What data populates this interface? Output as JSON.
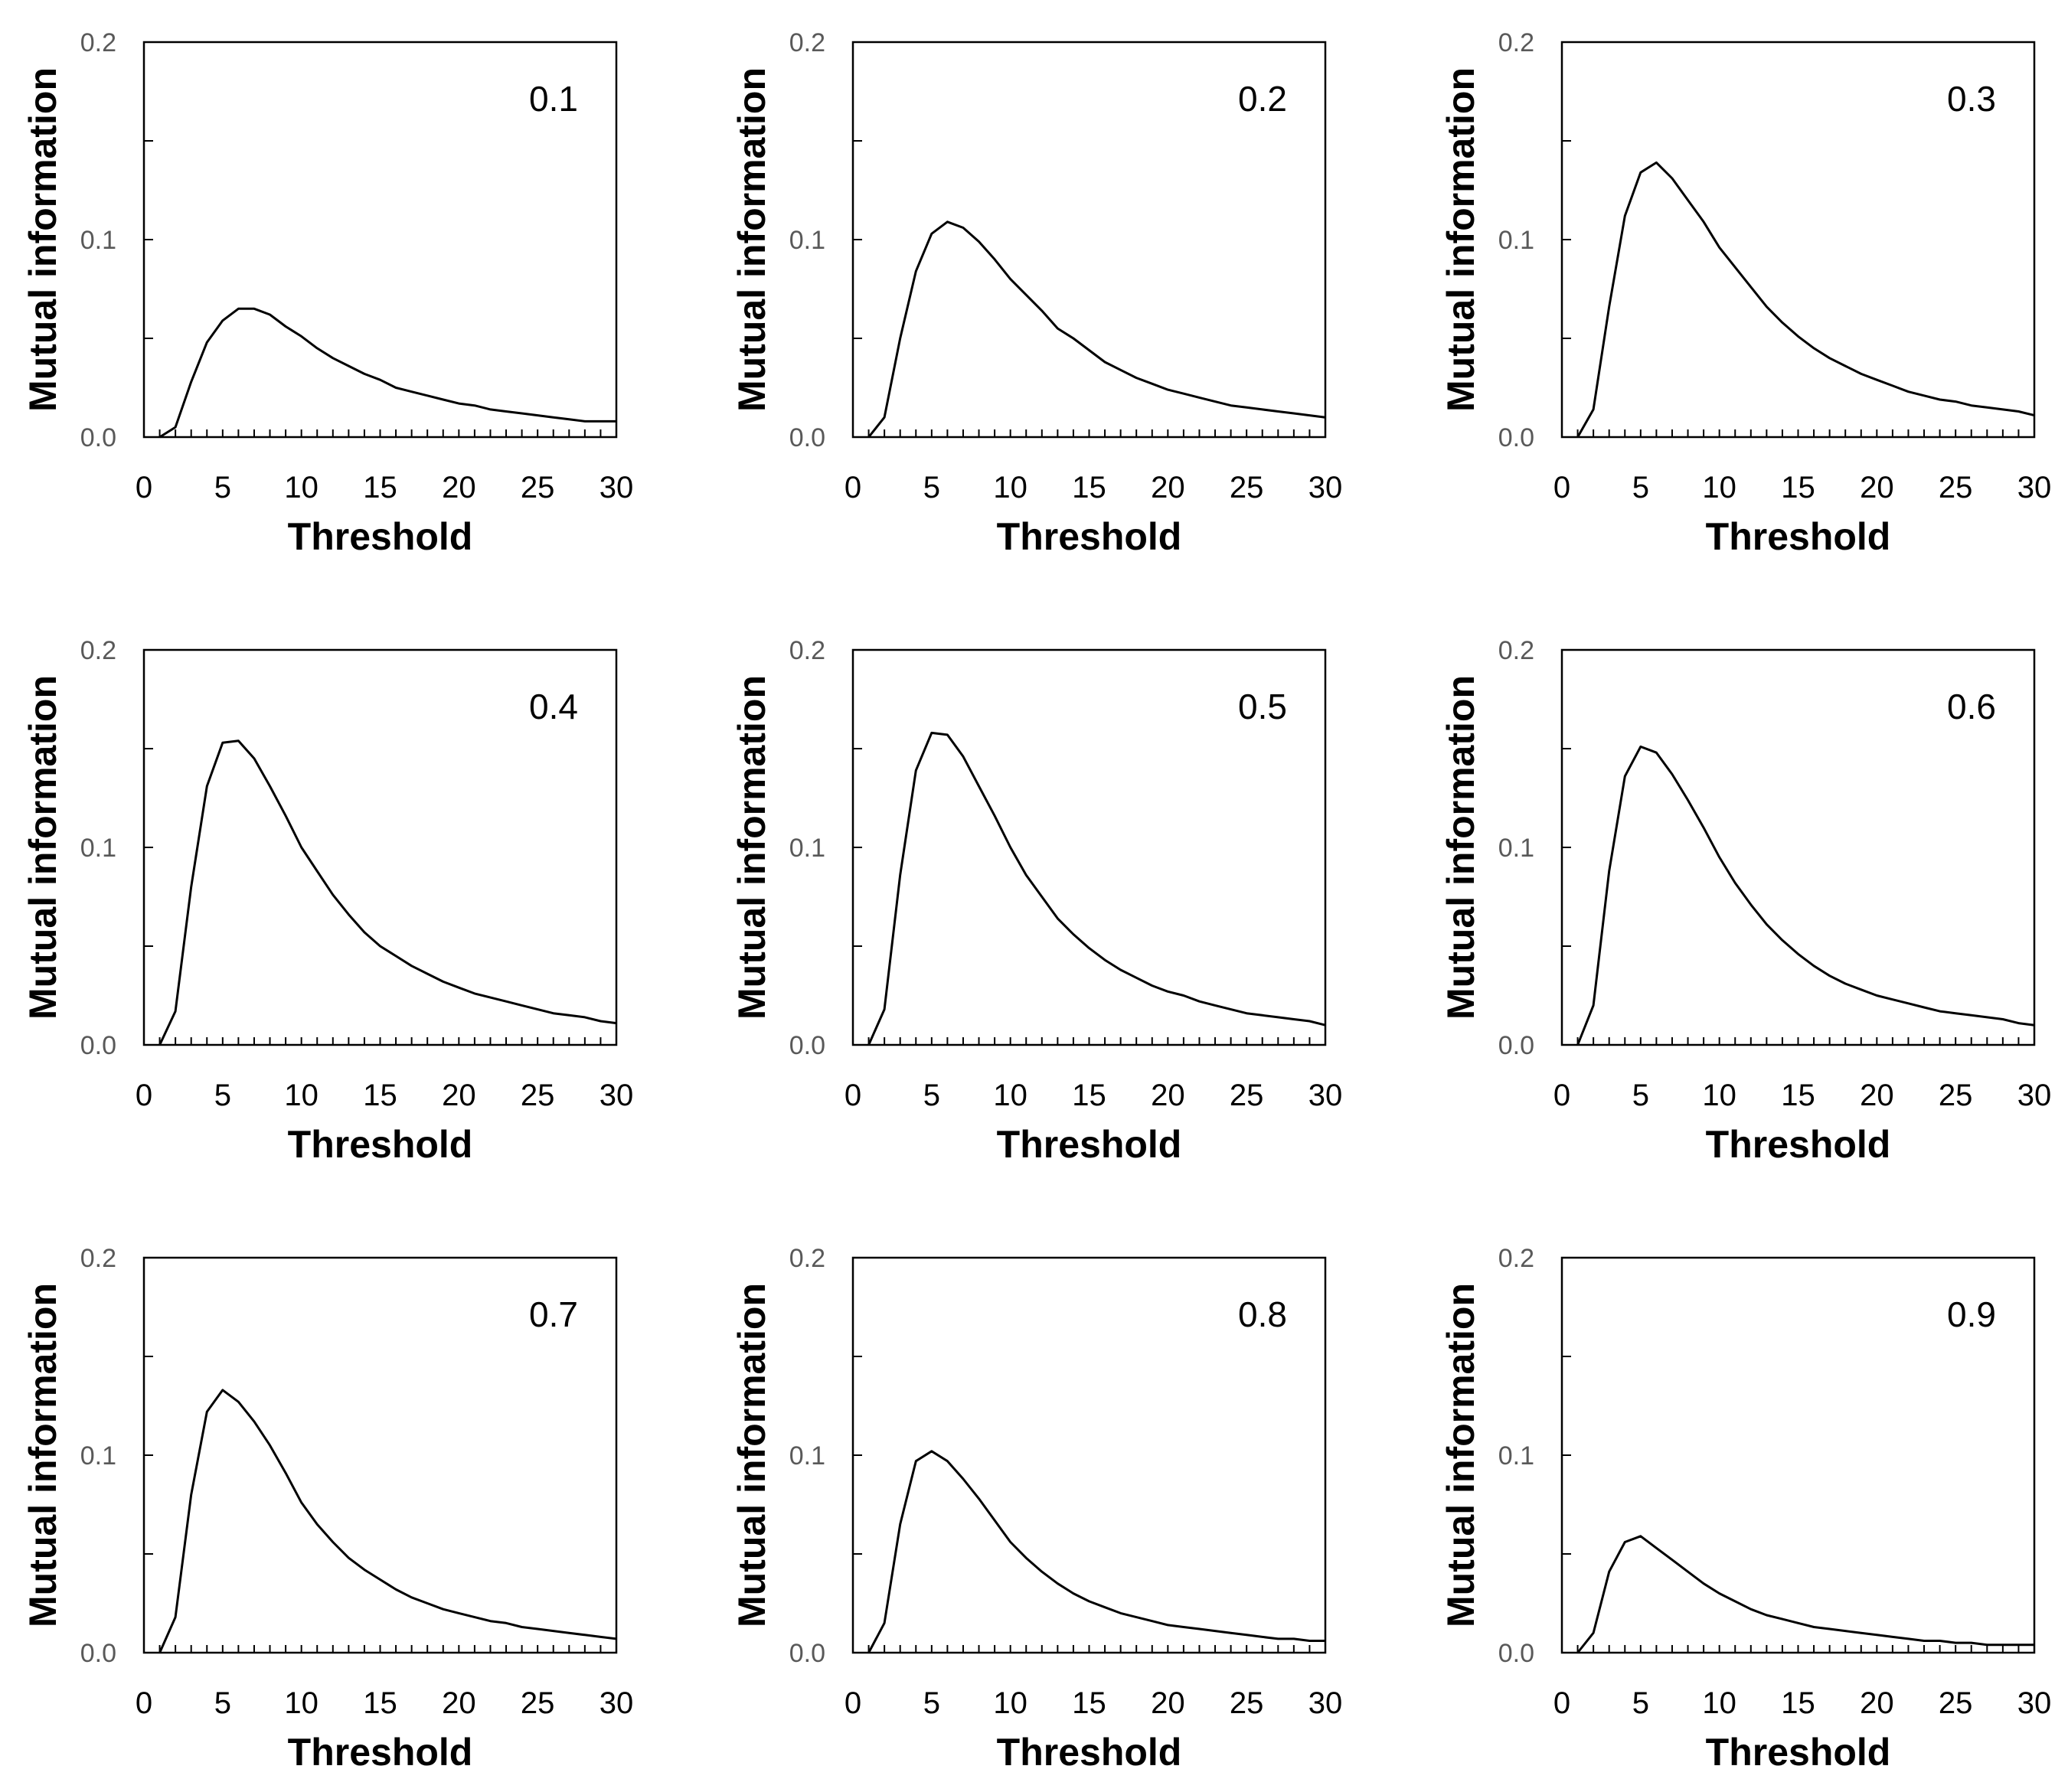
{
  "chart_data": [
    {
      "type": "line",
      "title": "0.1",
      "xlabel": "Threshold",
      "ylabel": "Mutual information",
      "xlim": [
        0,
        30
      ],
      "ylim": [
        0,
        0.2
      ],
      "grid": false,
      "x": [
        1,
        2,
        3,
        4,
        5,
        6,
        7,
        8,
        9,
        10,
        11,
        12,
        13,
        14,
        15,
        16,
        17,
        18,
        19,
        20,
        21,
        22,
        23,
        24,
        25,
        26,
        27,
        28,
        29,
        30
      ],
      "series": [
        {
          "name": "0.1",
          "values": [
            0.0,
            0.005,
            0.028,
            0.048,
            0.059,
            0.065,
            0.065,
            0.062,
            0.056,
            0.051,
            0.045,
            0.04,
            0.036,
            0.032,
            0.029,
            0.025,
            0.023,
            0.021,
            0.019,
            0.017,
            0.016,
            0.014,
            0.013,
            0.012,
            0.011,
            0.01,
            0.009,
            0.008,
            0.008,
            0.008
          ]
        }
      ]
    },
    {
      "type": "line",
      "title": "0.2",
      "xlabel": "Threshold",
      "ylabel": "Mutual information",
      "xlim": [
        0,
        30
      ],
      "ylim": [
        0,
        0.2
      ],
      "grid": false,
      "x": [
        1,
        2,
        3,
        4,
        5,
        6,
        7,
        8,
        9,
        10,
        11,
        12,
        13,
        14,
        15,
        16,
        17,
        18,
        19,
        20,
        21,
        22,
        23,
        24,
        25,
        26,
        27,
        28,
        29,
        30
      ],
      "series": [
        {
          "name": "0.2",
          "values": [
            0.0,
            0.01,
            0.05,
            0.084,
            0.103,
            0.109,
            0.106,
            0.099,
            0.09,
            0.08,
            0.072,
            0.064,
            0.055,
            0.05,
            0.044,
            0.038,
            0.034,
            0.03,
            0.027,
            0.024,
            0.022,
            0.02,
            0.018,
            0.016,
            0.015,
            0.014,
            0.013,
            0.012,
            0.011,
            0.01
          ]
        }
      ]
    },
    {
      "type": "line",
      "title": "0.3",
      "xlabel": "Threshold",
      "ylabel": "Mutual information",
      "xlim": [
        0,
        30
      ],
      "ylim": [
        0,
        0.2
      ],
      "grid": false,
      "x": [
        1,
        2,
        3,
        4,
        5,
        6,
        7,
        8,
        9,
        10,
        11,
        12,
        13,
        14,
        15,
        16,
        17,
        18,
        19,
        20,
        21,
        22,
        23,
        24,
        25,
        26,
        27,
        28,
        29,
        30
      ],
      "series": [
        {
          "name": "0.3",
          "values": [
            0.0,
            0.014,
            0.066,
            0.112,
            0.134,
            0.139,
            0.131,
            0.12,
            0.109,
            0.096,
            0.086,
            0.076,
            0.066,
            0.058,
            0.051,
            0.045,
            0.04,
            0.036,
            0.032,
            0.029,
            0.026,
            0.023,
            0.021,
            0.019,
            0.018,
            0.016,
            0.015,
            0.014,
            0.013,
            0.011
          ]
        }
      ]
    },
    {
      "type": "line",
      "title": "0.4",
      "xlabel": "Threshold",
      "ylabel": "Mutual information",
      "xlim": [
        0,
        30
      ],
      "ylim": [
        0,
        0.2
      ],
      "grid": false,
      "x": [
        1,
        2,
        3,
        4,
        5,
        6,
        7,
        8,
        9,
        10,
        11,
        12,
        13,
        14,
        15,
        16,
        17,
        18,
        19,
        20,
        21,
        22,
        23,
        24,
        25,
        26,
        27,
        28,
        29,
        30
      ],
      "series": [
        {
          "name": "0.4",
          "values": [
            0.0,
            0.017,
            0.08,
            0.131,
            0.153,
            0.154,
            0.145,
            0.131,
            0.116,
            0.1,
            0.088,
            0.076,
            0.066,
            0.057,
            0.05,
            0.045,
            0.04,
            0.036,
            0.032,
            0.029,
            0.026,
            0.024,
            0.022,
            0.02,
            0.018,
            0.016,
            0.015,
            0.014,
            0.012,
            0.011
          ]
        }
      ]
    },
    {
      "type": "line",
      "title": "0.5",
      "xlabel": "Threshold",
      "ylabel": "Mutual information",
      "xlim": [
        0,
        30
      ],
      "ylim": [
        0,
        0.2
      ],
      "grid": false,
      "x": [
        1,
        2,
        3,
        4,
        5,
        6,
        7,
        8,
        9,
        10,
        11,
        12,
        13,
        14,
        15,
        16,
        17,
        18,
        19,
        20,
        21,
        22,
        23,
        24,
        25,
        26,
        27,
        28,
        29,
        30
      ],
      "series": [
        {
          "name": "0.5",
          "values": [
            0.0,
            0.018,
            0.086,
            0.139,
            0.158,
            0.157,
            0.146,
            0.131,
            0.116,
            0.1,
            0.086,
            0.075,
            0.064,
            0.056,
            0.049,
            0.043,
            0.038,
            0.034,
            0.03,
            0.027,
            0.025,
            0.022,
            0.02,
            0.018,
            0.016,
            0.015,
            0.014,
            0.013,
            0.012,
            0.01
          ]
        }
      ]
    },
    {
      "type": "line",
      "title": "0.6",
      "xlabel": "Threshold",
      "ylabel": "Mutual information",
      "xlim": [
        0,
        30
      ],
      "ylim": [
        0,
        0.2
      ],
      "grid": false,
      "x": [
        1,
        2,
        3,
        4,
        5,
        6,
        7,
        8,
        9,
        10,
        11,
        12,
        13,
        14,
        15,
        16,
        17,
        18,
        19,
        20,
        21,
        22,
        23,
        24,
        25,
        26,
        27,
        28,
        29,
        30
      ],
      "series": [
        {
          "name": "0.6",
          "values": [
            0.0,
            0.02,
            0.088,
            0.136,
            0.151,
            0.148,
            0.137,
            0.124,
            0.11,
            0.095,
            0.082,
            0.071,
            0.061,
            0.053,
            0.046,
            0.04,
            0.035,
            0.031,
            0.028,
            0.025,
            0.023,
            0.021,
            0.019,
            0.017,
            0.016,
            0.015,
            0.014,
            0.013,
            0.011,
            0.01
          ]
        }
      ]
    },
    {
      "type": "line",
      "title": "0.7",
      "xlabel": "Threshold",
      "ylabel": "Mutual information",
      "xlim": [
        0,
        30
      ],
      "ylim": [
        0,
        0.2
      ],
      "grid": false,
      "x": [
        1,
        2,
        3,
        4,
        5,
        6,
        7,
        8,
        9,
        10,
        11,
        12,
        13,
        14,
        15,
        16,
        17,
        18,
        19,
        20,
        21,
        22,
        23,
        24,
        25,
        26,
        27,
        28,
        29,
        30
      ],
      "series": [
        {
          "name": "0.7",
          "values": [
            0.0,
            0.018,
            0.08,
            0.122,
            0.133,
            0.127,
            0.117,
            0.105,
            0.091,
            0.076,
            0.065,
            0.056,
            0.048,
            0.042,
            0.037,
            0.032,
            0.028,
            0.025,
            0.022,
            0.02,
            0.018,
            0.016,
            0.015,
            0.013,
            0.012,
            0.011,
            0.01,
            0.009,
            0.008,
            0.007
          ]
        }
      ]
    },
    {
      "type": "line",
      "title": "0.8",
      "xlabel": "Threshold",
      "ylabel": "Mutual information",
      "xlim": [
        0,
        30
      ],
      "ylim": [
        0,
        0.2
      ],
      "grid": false,
      "x": [
        1,
        2,
        3,
        4,
        5,
        6,
        7,
        8,
        9,
        10,
        11,
        12,
        13,
        14,
        15,
        16,
        17,
        18,
        19,
        20,
        21,
        22,
        23,
        24,
        25,
        26,
        27,
        28,
        29,
        30
      ],
      "series": [
        {
          "name": "0.8",
          "values": [
            0.0,
            0.015,
            0.065,
            0.097,
            0.102,
            0.097,
            0.088,
            0.078,
            0.067,
            0.056,
            0.048,
            0.041,
            0.035,
            0.03,
            0.026,
            0.023,
            0.02,
            0.018,
            0.016,
            0.014,
            0.013,
            0.012,
            0.011,
            0.01,
            0.009,
            0.008,
            0.007,
            0.007,
            0.006,
            0.006
          ]
        }
      ]
    },
    {
      "type": "line",
      "title": "0.9",
      "xlabel": "Threshold",
      "ylabel": "Mutual information",
      "xlim": [
        0,
        30
      ],
      "ylim": [
        0,
        0.2
      ],
      "grid": false,
      "x": [
        1,
        2,
        3,
        4,
        5,
        6,
        7,
        8,
        9,
        10,
        11,
        12,
        13,
        14,
        15,
        16,
        17,
        18,
        19,
        20,
        21,
        22,
        23,
        24,
        25,
        26,
        27,
        28,
        29,
        30
      ],
      "series": [
        {
          "name": "0.9",
          "values": [
            0.0,
            0.01,
            0.041,
            0.056,
            0.059,
            0.053,
            0.047,
            0.041,
            0.035,
            0.03,
            0.026,
            0.022,
            0.019,
            0.017,
            0.015,
            0.013,
            0.012,
            0.011,
            0.01,
            0.009,
            0.008,
            0.007,
            0.006,
            0.006,
            0.005,
            0.005,
            0.004,
            0.004,
            0.004,
            0.004
          ]
        }
      ]
    }
  ]
}
